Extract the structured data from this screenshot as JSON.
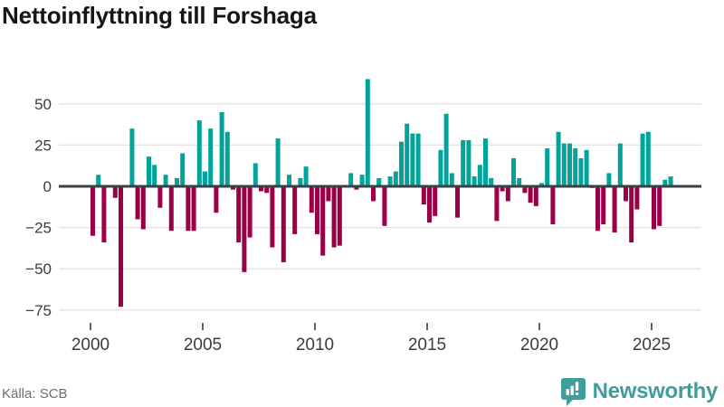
{
  "header": {
    "title": "Nettoinflyttning till Forshaga"
  },
  "footer": {
    "source": "Källa: SCB",
    "brand_name": "Newsworthy",
    "brand_icon": "newsworthy-speech-bubble-bar-chart-icon"
  },
  "colors": {
    "positive_bar": "#00A49B",
    "negative_bar": "#990048",
    "gridline": "#E3E3E3",
    "zero_line": "#3B4046",
    "axis_text": "#3C3C3C",
    "title_text": "#161616",
    "source_text": "#6B6F77",
    "brand_teal": "#3F9E9B"
  },
  "chart_data": {
    "type": "bar",
    "title": "Nettoinflyttning till Forshaga",
    "source": "Källa: SCB",
    "frequency": "quarterly",
    "start_year": 2000,
    "start_quarter": 1,
    "values": [
      -30,
      7,
      -34,
      0,
      -7,
      -73,
      0,
      35,
      -20,
      -26,
      18,
      13,
      -13,
      7,
      -27,
      5,
      20,
      -27,
      -27,
      40,
      9,
      35,
      -16,
      45,
      33,
      -2,
      -34,
      -52,
      -31,
      14,
      -3,
      -4,
      -37,
      29,
      -46,
      7,
      -29,
      5,
      12,
      -16,
      -29,
      -42,
      -9,
      -37,
      -36,
      0,
      8,
      -2,
      7,
      65,
      -9,
      5,
      -24,
      6,
      9,
      27,
      38,
      32,
      32,
      -11,
      -22,
      -18,
      22,
      44,
      8,
      -19,
      28,
      28,
      6,
      13,
      29,
      5,
      -21,
      -3,
      -9,
      17,
      5,
      -4,
      -10,
      -12,
      2,
      23,
      -23,
      33,
      26,
      26,
      23,
      17,
      22,
      -1,
      -27,
      -23,
      8,
      -28,
      26,
      -9,
      -34,
      -14,
      32,
      33,
      -26,
      -24,
      4,
      6
    ],
    "x_tick_years": [
      2000,
      2005,
      2010,
      2015,
      2020,
      2025
    ],
    "y_ticks": [
      50,
      25,
      0,
      -25,
      -50,
      -75
    ],
    "y_tick_labels": [
      "50",
      "25",
      "0",
      "−25",
      "−50",
      "−75"
    ],
    "ylim": [
      -80,
      70
    ],
    "grid": "horizontal-only",
    "legend": "none",
    "bar_color_rule": "teal when positive, dark magenta when negative"
  }
}
